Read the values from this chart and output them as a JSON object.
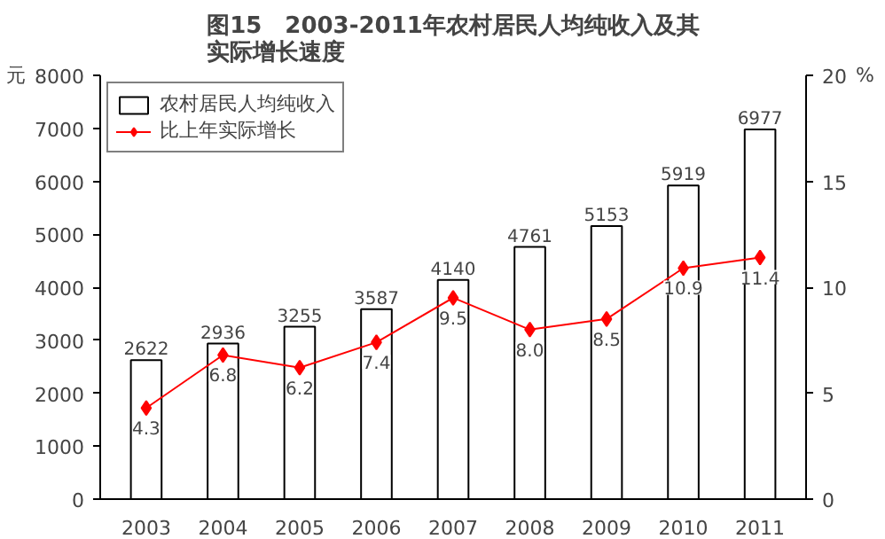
{
  "chart_data": {
    "type": "bar",
    "title": "图15　2003-2011年农村居民人均纯收入及其实际增长速度",
    "categories": [
      "2003",
      "2004",
      "2005",
      "2006",
      "2007",
      "2008",
      "2009",
      "2010",
      "2011"
    ],
    "ylabel": "元",
    "y2label": "%",
    "series": [
      {
        "name": "农村居民人均纯收入",
        "color": "#ffffff",
        "values": [
          2622,
          2936,
          3255,
          3587,
          4140,
          4761,
          5153,
          5919,
          6977
        ],
        "value_labels": [
          "2622",
          "2936",
          "3255",
          "3587",
          "4140",
          "4761",
          "5153",
          "5919",
          "6977"
        ]
      },
      {
        "name": "比上年实际增长",
        "type": "line",
        "axis": "y2",
        "color": "#ff0000",
        "marker": "diamond",
        "values": [
          4.3,
          6.8,
          6.2,
          7.4,
          9.5,
          8.0,
          8.5,
          10.9,
          11.4
        ],
        "value_labels": [
          "4.3",
          "6.8",
          "6.2",
          "7.4",
          "9.5",
          "8.0",
          "8.5",
          "10.9",
          "11.4"
        ]
      }
    ],
    "ylim": [
      0,
      8000
    ],
    "yticks": [
      0,
      1000,
      2000,
      3000,
      4000,
      5000,
      6000,
      7000,
      8000
    ],
    "y2lim": [
      0,
      20
    ],
    "y2ticks": [
      0,
      5,
      10,
      15,
      20
    ],
    "grid": false,
    "legend": "top left"
  }
}
